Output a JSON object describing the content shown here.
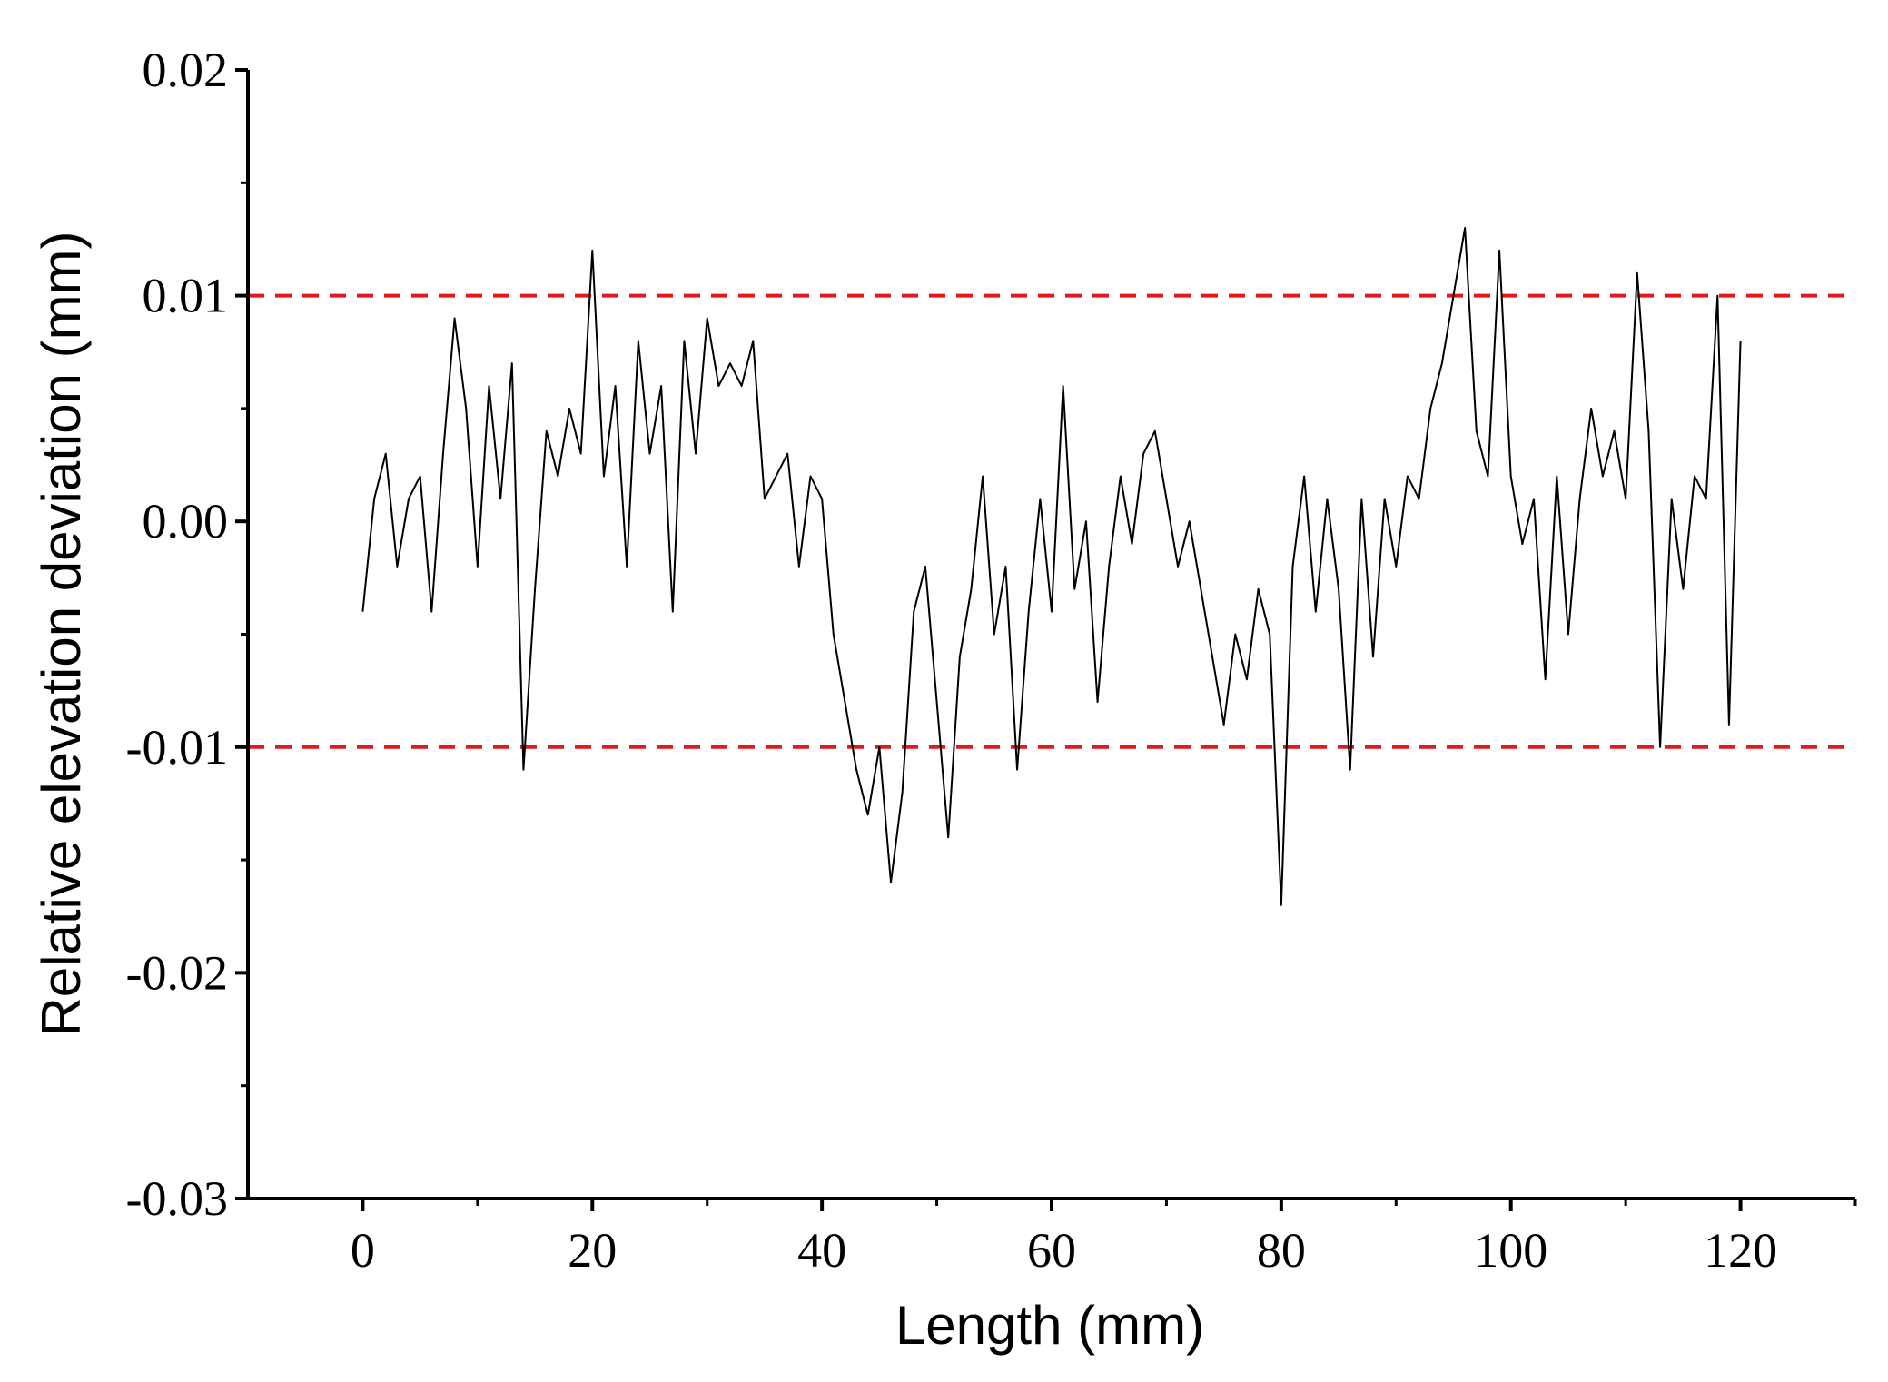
{
  "chart_data": {
    "type": "line",
    "x_label": "Length (mm)",
    "y_label": "Relative elevation deviation (mm)",
    "xlim": [
      -10,
      130
    ],
    "xticks": [
      0,
      20,
      40,
      60,
      80,
      100,
      120
    ],
    "xminor": [
      10,
      30,
      50,
      70,
      90,
      110,
      130
    ],
    "ylim": [
      -0.03,
      0.02
    ],
    "yticks": [
      -0.03,
      -0.02,
      -0.01,
      {
        "value": 0,
        "label": "0.00"
      },
      0.01,
      0.02
    ],
    "yminor": [
      -0.025,
      -0.015,
      -0.005,
      0.005,
      0.015
    ],
    "reference_lines": [
      {
        "value": 0.01,
        "color": "#e31a1c"
      },
      {
        "value": -0.01,
        "color": "#e31a1c"
      }
    ],
    "x": [
      0,
      1,
      2,
      3,
      4,
      5,
      6,
      7,
      8,
      9,
      10,
      11,
      12,
      13,
      14,
      15,
      16,
      17,
      18,
      19,
      20,
      21,
      22,
      23,
      24,
      25,
      26,
      27,
      28,
      29,
      30,
      31,
      32,
      33,
      34,
      35,
      36,
      37,
      38,
      39,
      40,
      41,
      42,
      43,
      44,
      45,
      46,
      47,
      48,
      49,
      50,
      51,
      52,
      53,
      54,
      55,
      56,
      57,
      58,
      59,
      60,
      61,
      62,
      63,
      64,
      65,
      66,
      67,
      68,
      69,
      70,
      71,
      72,
      73,
      74,
      75,
      76,
      77,
      78,
      79,
      80,
      81,
      82,
      83,
      84,
      85,
      86,
      87,
      88,
      89,
      90,
      91,
      92,
      93,
      94,
      95,
      96,
      97,
      98,
      99,
      100,
      101,
      102,
      103,
      104,
      105,
      106,
      107,
      108,
      109,
      110,
      111,
      112,
      113,
      114,
      115,
      116,
      117,
      118,
      119,
      120
    ],
    "series": [
      {
        "color": "#000000",
        "values": [
          -0.004,
          0.001,
          0.003,
          -0.002,
          0.001,
          0.002,
          -0.004,
          0.003,
          0.009,
          0.005,
          -0.002,
          0.006,
          0.001,
          0.007,
          -0.011,
          -0.003,
          0.004,
          0.002,
          0.005,
          0.003,
          0.012,
          0.002,
          0.006,
          -0.002,
          0.008,
          0.003,
          0.006,
          -0.004,
          0.008,
          0.003,
          0.009,
          0.006,
          0.007,
          0.006,
          0.008,
          0.001,
          0.002,
          0.003,
          -0.002,
          0.002,
          0.001,
          -0.005,
          -0.008,
          -0.011,
          -0.013,
          -0.01,
          -0.016,
          -0.012,
          -0.004,
          -0.002,
          -0.008,
          -0.014,
          -0.006,
          -0.003,
          0.002,
          -0.005,
          -0.002,
          -0.011,
          -0.004,
          0.001,
          -0.004,
          0.006,
          -0.003,
          0.0,
          -0.008,
          -0.002,
          0.002,
          -0.001,
          0.003,
          0.004,
          0.001,
          -0.002,
          0.0,
          -0.003,
          -0.006,
          -0.009,
          -0.005,
          -0.007,
          -0.003,
          -0.005,
          -0.017,
          -0.002,
          0.002,
          -0.004,
          0.001,
          -0.003,
          -0.011,
          0.001,
          -0.006,
          0.001,
          -0.002,
          0.002,
          0.001,
          0.005,
          0.007,
          0.01,
          0.013,
          0.004,
          0.002,
          0.012,
          0.002,
          -0.001,
          0.001,
          -0.007,
          0.002,
          -0.005,
          0.001,
          0.005,
          0.002,
          0.004,
          0.001,
          0.011,
          0.004,
          -0.01,
          0.001,
          -0.003,
          0.002,
          0.001,
          0.01,
          -0.009,
          0.008
        ]
      }
    ]
  }
}
